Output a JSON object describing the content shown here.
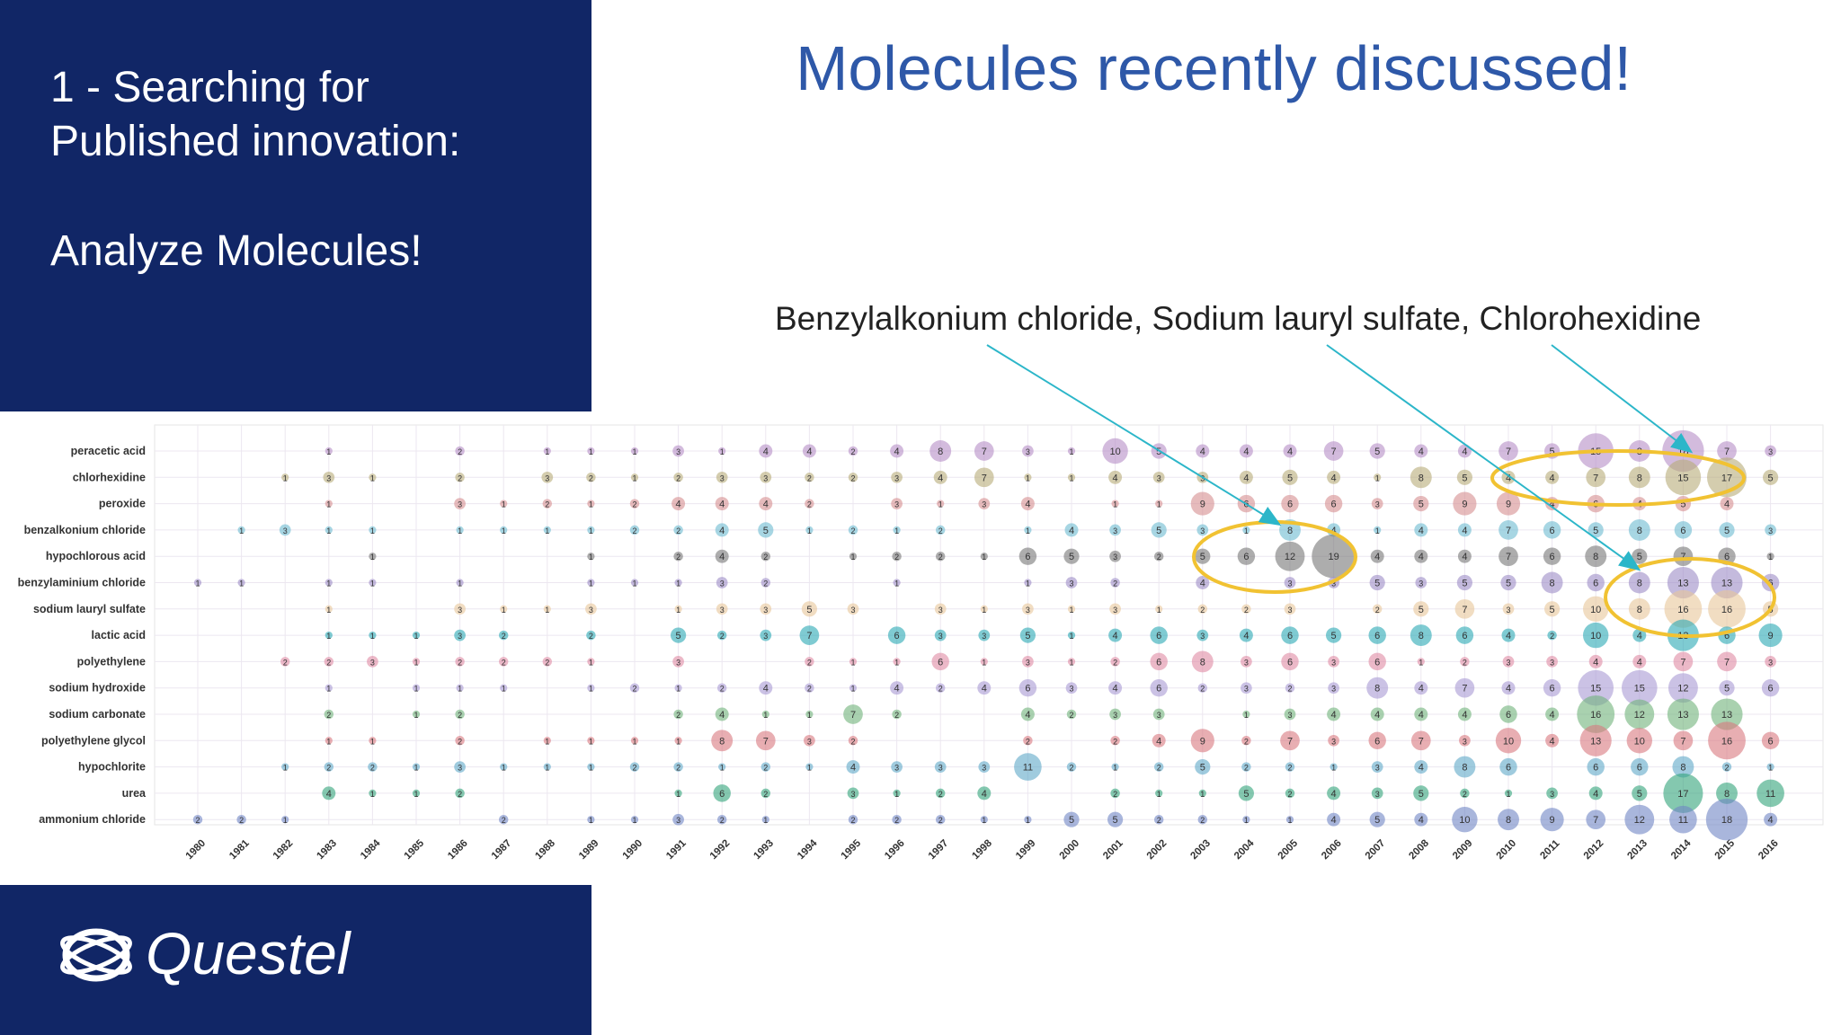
{
  "left_panel": {
    "line1": "1 - Searching for",
    "line2": "Published innovation:",
    "line3": "Analyze Molecules!"
  },
  "main_title": "Molecules recently discussed!",
  "annotation": "Benzylalkonium chloride, Sodium lauryl sulfate, Chlorohexidine",
  "logo": {
    "text": "Questel"
  },
  "colors": {
    "panel": "#112666",
    "title": "#2e58a8",
    "highlight": "#f1c232",
    "arrow": "#2cb6c9"
  },
  "chart_data": {
    "type": "scatter",
    "title": "",
    "xlabel": "",
    "ylabel": "",
    "grid": true,
    "x_categories": [
      "1980",
      "1981",
      "1982",
      "1983",
      "1984",
      "1985",
      "1986",
      "1987",
      "1988",
      "1989",
      "1990",
      "1991",
      "1992",
      "1993",
      "1994",
      "1995",
      "1996",
      "1997",
      "1998",
      "1999",
      "2000",
      "2001",
      "2002",
      "2003",
      "2004",
      "2005",
      "2006",
      "2007",
      "2008",
      "2009",
      "2010",
      "2011",
      "2012",
      "2013",
      "2014",
      "2015",
      "2016"
    ],
    "series": [
      {
        "name": "peracetic acid",
        "color": "#b58ec7",
        "values": [
          0,
          0,
          0,
          1,
          0,
          0,
          2,
          0,
          1,
          1,
          1,
          3,
          1,
          4,
          4,
          2,
          4,
          8,
          7,
          3,
          1,
          10,
          5,
          4,
          4,
          4,
          7,
          5,
          4,
          4,
          7,
          5,
          15,
          8,
          18,
          7,
          3
        ]
      },
      {
        "name": "chlorhexidine",
        "color": "#b8ab78",
        "values": [
          0,
          0,
          1,
          3,
          1,
          0,
          2,
          0,
          3,
          2,
          1,
          2,
          3,
          3,
          2,
          2,
          3,
          4,
          7,
          1,
          1,
          4,
          3,
          3,
          4,
          5,
          4,
          1,
          8,
          5,
          4,
          4,
          7,
          8,
          15,
          17,
          5
        ]
      },
      {
        "name": "peroxide",
        "color": "#d68e90",
        "values": [
          0,
          0,
          0,
          1,
          0,
          0,
          3,
          1,
          2,
          1,
          2,
          4,
          4,
          4,
          2,
          0,
          3,
          1,
          3,
          4,
          0,
          1,
          1,
          9,
          6,
          6,
          6,
          3,
          5,
          9,
          9,
          4,
          6,
          4,
          5,
          4,
          0
        ]
      },
      {
        "name": "benzalkonium chloride",
        "color": "#6dbad1",
        "values": [
          0,
          1,
          3,
          1,
          1,
          0,
          1,
          1,
          1,
          1,
          2,
          2,
          4,
          5,
          1,
          2,
          1,
          2,
          0,
          1,
          4,
          3,
          5,
          3,
          1,
          8,
          4,
          1,
          4,
          4,
          7,
          6,
          5,
          8,
          6,
          5,
          3
        ]
      },
      {
        "name": "hypochlorous acid",
        "color": "#777777",
        "values": [
          0,
          0,
          0,
          0,
          1,
          0,
          0,
          0,
          0,
          1,
          0,
          2,
          4,
          2,
          0,
          1,
          2,
          2,
          1,
          6,
          5,
          3,
          2,
          5,
          6,
          12,
          19,
          4,
          4,
          4,
          7,
          6,
          8,
          5,
          7,
          6,
          1
        ]
      },
      {
        "name": "benzylaminium chloride",
        "color": "#9c8cc6",
        "values": [
          1,
          1,
          0,
          1,
          1,
          0,
          1,
          0,
          0,
          1,
          1,
          1,
          3,
          2,
          0,
          0,
          1,
          0,
          0,
          1,
          3,
          2,
          0,
          4,
          0,
          3,
          3,
          5,
          3,
          5,
          5,
          8,
          6,
          8,
          13,
          13,
          6
        ]
      },
      {
        "name": "sodium lauryl sulfate",
        "color": "#e8c79a",
        "values": [
          0,
          0,
          0,
          1,
          0,
          0,
          3,
          1,
          1,
          3,
          0,
          1,
          3,
          3,
          5,
          3,
          0,
          3,
          1,
          3,
          1,
          3,
          1,
          2,
          2,
          3,
          0,
          2,
          5,
          7,
          3,
          5,
          10,
          8,
          16,
          16,
          5
        ]
      },
      {
        "name": "lactic acid",
        "color": "#2aa9b4",
        "values": [
          0,
          0,
          0,
          1,
          1,
          1,
          3,
          2,
          0,
          2,
          0,
          5,
          2,
          3,
          7,
          0,
          6,
          3,
          3,
          5,
          1,
          4,
          6,
          3,
          4,
          6,
          5,
          6,
          8,
          6,
          4,
          2,
          10,
          4,
          13,
          6,
          9
        ]
      },
      {
        "name": "polyethylene",
        "color": "#e08aa3",
        "values": [
          0,
          0,
          2,
          2,
          3,
          1,
          2,
          2,
          2,
          1,
          0,
          3,
          0,
          0,
          2,
          1,
          1,
          6,
          1,
          3,
          1,
          2,
          6,
          8,
          3,
          6,
          3,
          6,
          1,
          2,
          3,
          3,
          4,
          4,
          7,
          7,
          3
        ]
      },
      {
        "name": "sodium hydroxide",
        "color": "#a899d4",
        "values": [
          0,
          0,
          0,
          1,
          0,
          1,
          1,
          1,
          0,
          1,
          2,
          1,
          2,
          4,
          2,
          1,
          4,
          2,
          4,
          6,
          3,
          4,
          6,
          2,
          3,
          2,
          3,
          8,
          4,
          7,
          4,
          6,
          15,
          15,
          12,
          5,
          6
        ]
      },
      {
        "name": "sodium carbonate",
        "color": "#6fb27a",
        "values": [
          0,
          0,
          0,
          2,
          0,
          1,
          2,
          0,
          0,
          0,
          0,
          2,
          4,
          1,
          1,
          7,
          2,
          0,
          0,
          4,
          2,
          3,
          3,
          0,
          1,
          3,
          4,
          4,
          4,
          4,
          6,
          4,
          16,
          12,
          13,
          13,
          0
        ]
      },
      {
        "name": "polyethylene glycol",
        "color": "#d9787f",
        "values": [
          0,
          0,
          0,
          1,
          1,
          0,
          2,
          0,
          1,
          1,
          1,
          1,
          8,
          7,
          3,
          2,
          0,
          0,
          0,
          2,
          0,
          2,
          4,
          9,
          2,
          7,
          3,
          6,
          7,
          3,
          10,
          4,
          13,
          10,
          7,
          16,
          6
        ]
      },
      {
        "name": "hypochlorite",
        "color": "#5fa9c8",
        "values": [
          0,
          0,
          1,
          2,
          2,
          1,
          3,
          1,
          1,
          1,
          2,
          2,
          1,
          2,
          1,
          4,
          3,
          3,
          3,
          11,
          2,
          1,
          2,
          5,
          2,
          2,
          1,
          3,
          4,
          8,
          6,
          0,
          6,
          6,
          8,
          2,
          1
        ]
      },
      {
        "name": "urea",
        "color": "#32a37a",
        "values": [
          0,
          0,
          0,
          4,
          1,
          1,
          2,
          0,
          0,
          0,
          0,
          1,
          6,
          2,
          0,
          3,
          1,
          2,
          4,
          0,
          0,
          2,
          1,
          1,
          5,
          2,
          4,
          3,
          5,
          2,
          1,
          3,
          4,
          5,
          17,
          8,
          11
        ]
      },
      {
        "name": "ammonium chloride",
        "color": "#7086c4",
        "values": [
          2,
          2,
          1,
          0,
          0,
          0,
          0,
          2,
          0,
          1,
          1,
          3,
          2,
          1,
          0,
          2,
          2,
          2,
          1,
          1,
          5,
          5,
          2,
          2,
          1,
          1,
          4,
          5,
          4,
          10,
          8,
          9,
          7,
          12,
          11,
          18,
          4
        ]
      }
    ]
  }
}
